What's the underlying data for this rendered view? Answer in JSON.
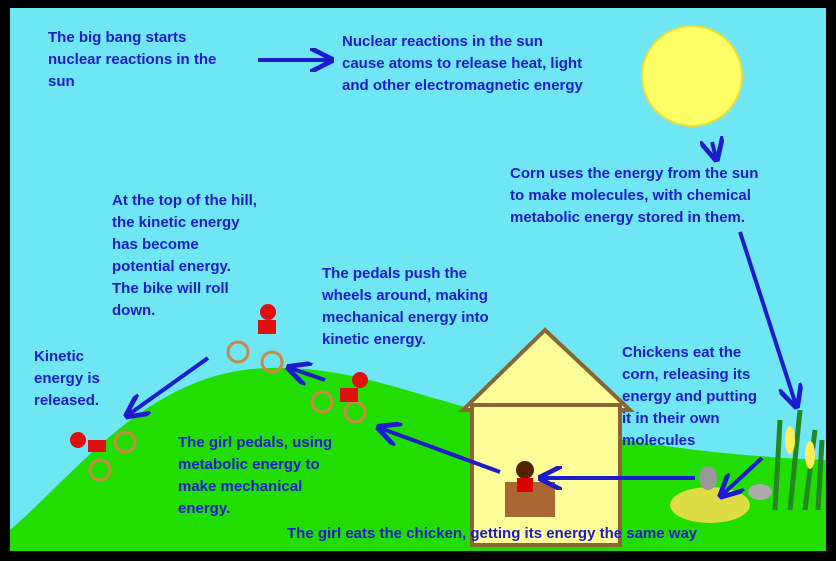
{
  "steps": [
    {
      "lines": [
        "The big bang starts",
        "nuclear reactions in the",
        "sun"
      ]
    },
    {
      "lines": [
        "Nuclear reactions in the sun",
        "cause atoms to release heat, light",
        "and other electromagnetic energy"
      ]
    },
    {
      "lines": [
        "Corn uses the energy from the sun",
        "to make molecules, with chemical",
        "metabolic energy stored in them."
      ]
    },
    {
      "lines": [
        "At the top of the hill,",
        "the kinetic energy",
        "has become",
        "potential energy.",
        "The bike will roll",
        "down."
      ]
    },
    {
      "lines": [
        "The pedals push the",
        "wheels around, making",
        "mechanical energy into",
        "kinetic energy."
      ]
    },
    {
      "lines": [
        "Kinetic",
        "energy is",
        "released."
      ]
    },
    {
      "lines": [
        "Chickens eat the",
        "corn, releasing its",
        "energy and putting",
        "it in their own",
        "molecules"
      ]
    },
    {
      "lines": [
        "The girl pedals, using",
        "metabolic energy to",
        "make mechanical",
        "energy."
      ]
    },
    {
      "lines": [
        "The girl eats the chicken, getting its energy the same way"
      ]
    }
  ]
}
